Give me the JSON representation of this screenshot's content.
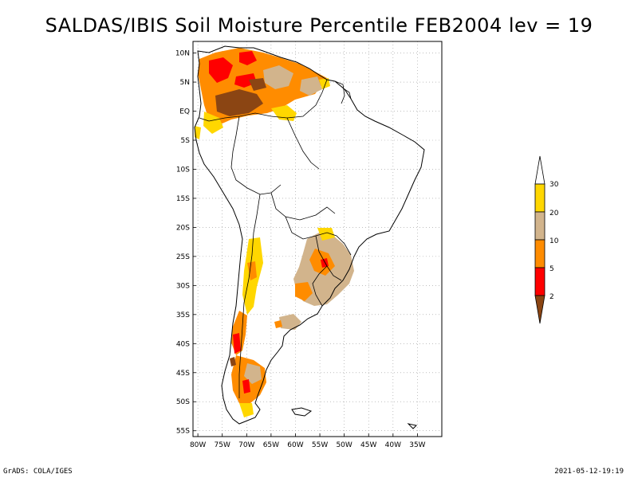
{
  "title": "SALDAS/IBIS Soil Moisture Percentile FEB2004 lev = 19",
  "map": {
    "lon_range": [
      -81,
      -30
    ],
    "lat_range": [
      -56,
      12
    ],
    "lon_ticks": [
      {
        "value": -80,
        "label": "80W"
      },
      {
        "value": -75,
        "label": "75W"
      },
      {
        "value": -70,
        "label": "70W"
      },
      {
        "value": -65,
        "label": "65W"
      },
      {
        "value": -60,
        "label": "60W"
      },
      {
        "value": -55,
        "label": "55W"
      },
      {
        "value": -50,
        "label": "50W"
      },
      {
        "value": -45,
        "label": "45W"
      },
      {
        "value": -40,
        "label": "40W"
      },
      {
        "value": -35,
        "label": "35W"
      }
    ],
    "lat_ticks": [
      {
        "value": 10,
        "label": "10N"
      },
      {
        "value": 5,
        "label": "5N"
      },
      {
        "value": 0,
        "label": "EQ"
      },
      {
        "value": -5,
        "label": "5S"
      },
      {
        "value": -10,
        "label": "10S"
      },
      {
        "value": -15,
        "label": "15S"
      },
      {
        "value": -20,
        "label": "20S"
      },
      {
        "value": -25,
        "label": "25S"
      },
      {
        "value": -30,
        "label": "30S"
      },
      {
        "value": -35,
        "label": "35S"
      },
      {
        "value": -40,
        "label": "40S"
      },
      {
        "value": -45,
        "label": "45S"
      },
      {
        "value": -50,
        "label": "50S"
      },
      {
        "value": -55,
        "label": "55S"
      }
    ],
    "grid": true
  },
  "colorbar": {
    "labels": [
      "2",
      "5",
      "10",
      "20",
      "30"
    ],
    "colors": [
      "#8b4513",
      "#ff0000",
      "#ff8c00",
      "#d2b48c",
      "#ffd700",
      "#ffffff"
    ]
  },
  "footer": {
    "credit": "GrADS: COLA/IGES",
    "timestamp": "2021-05-12-19:19"
  }
}
